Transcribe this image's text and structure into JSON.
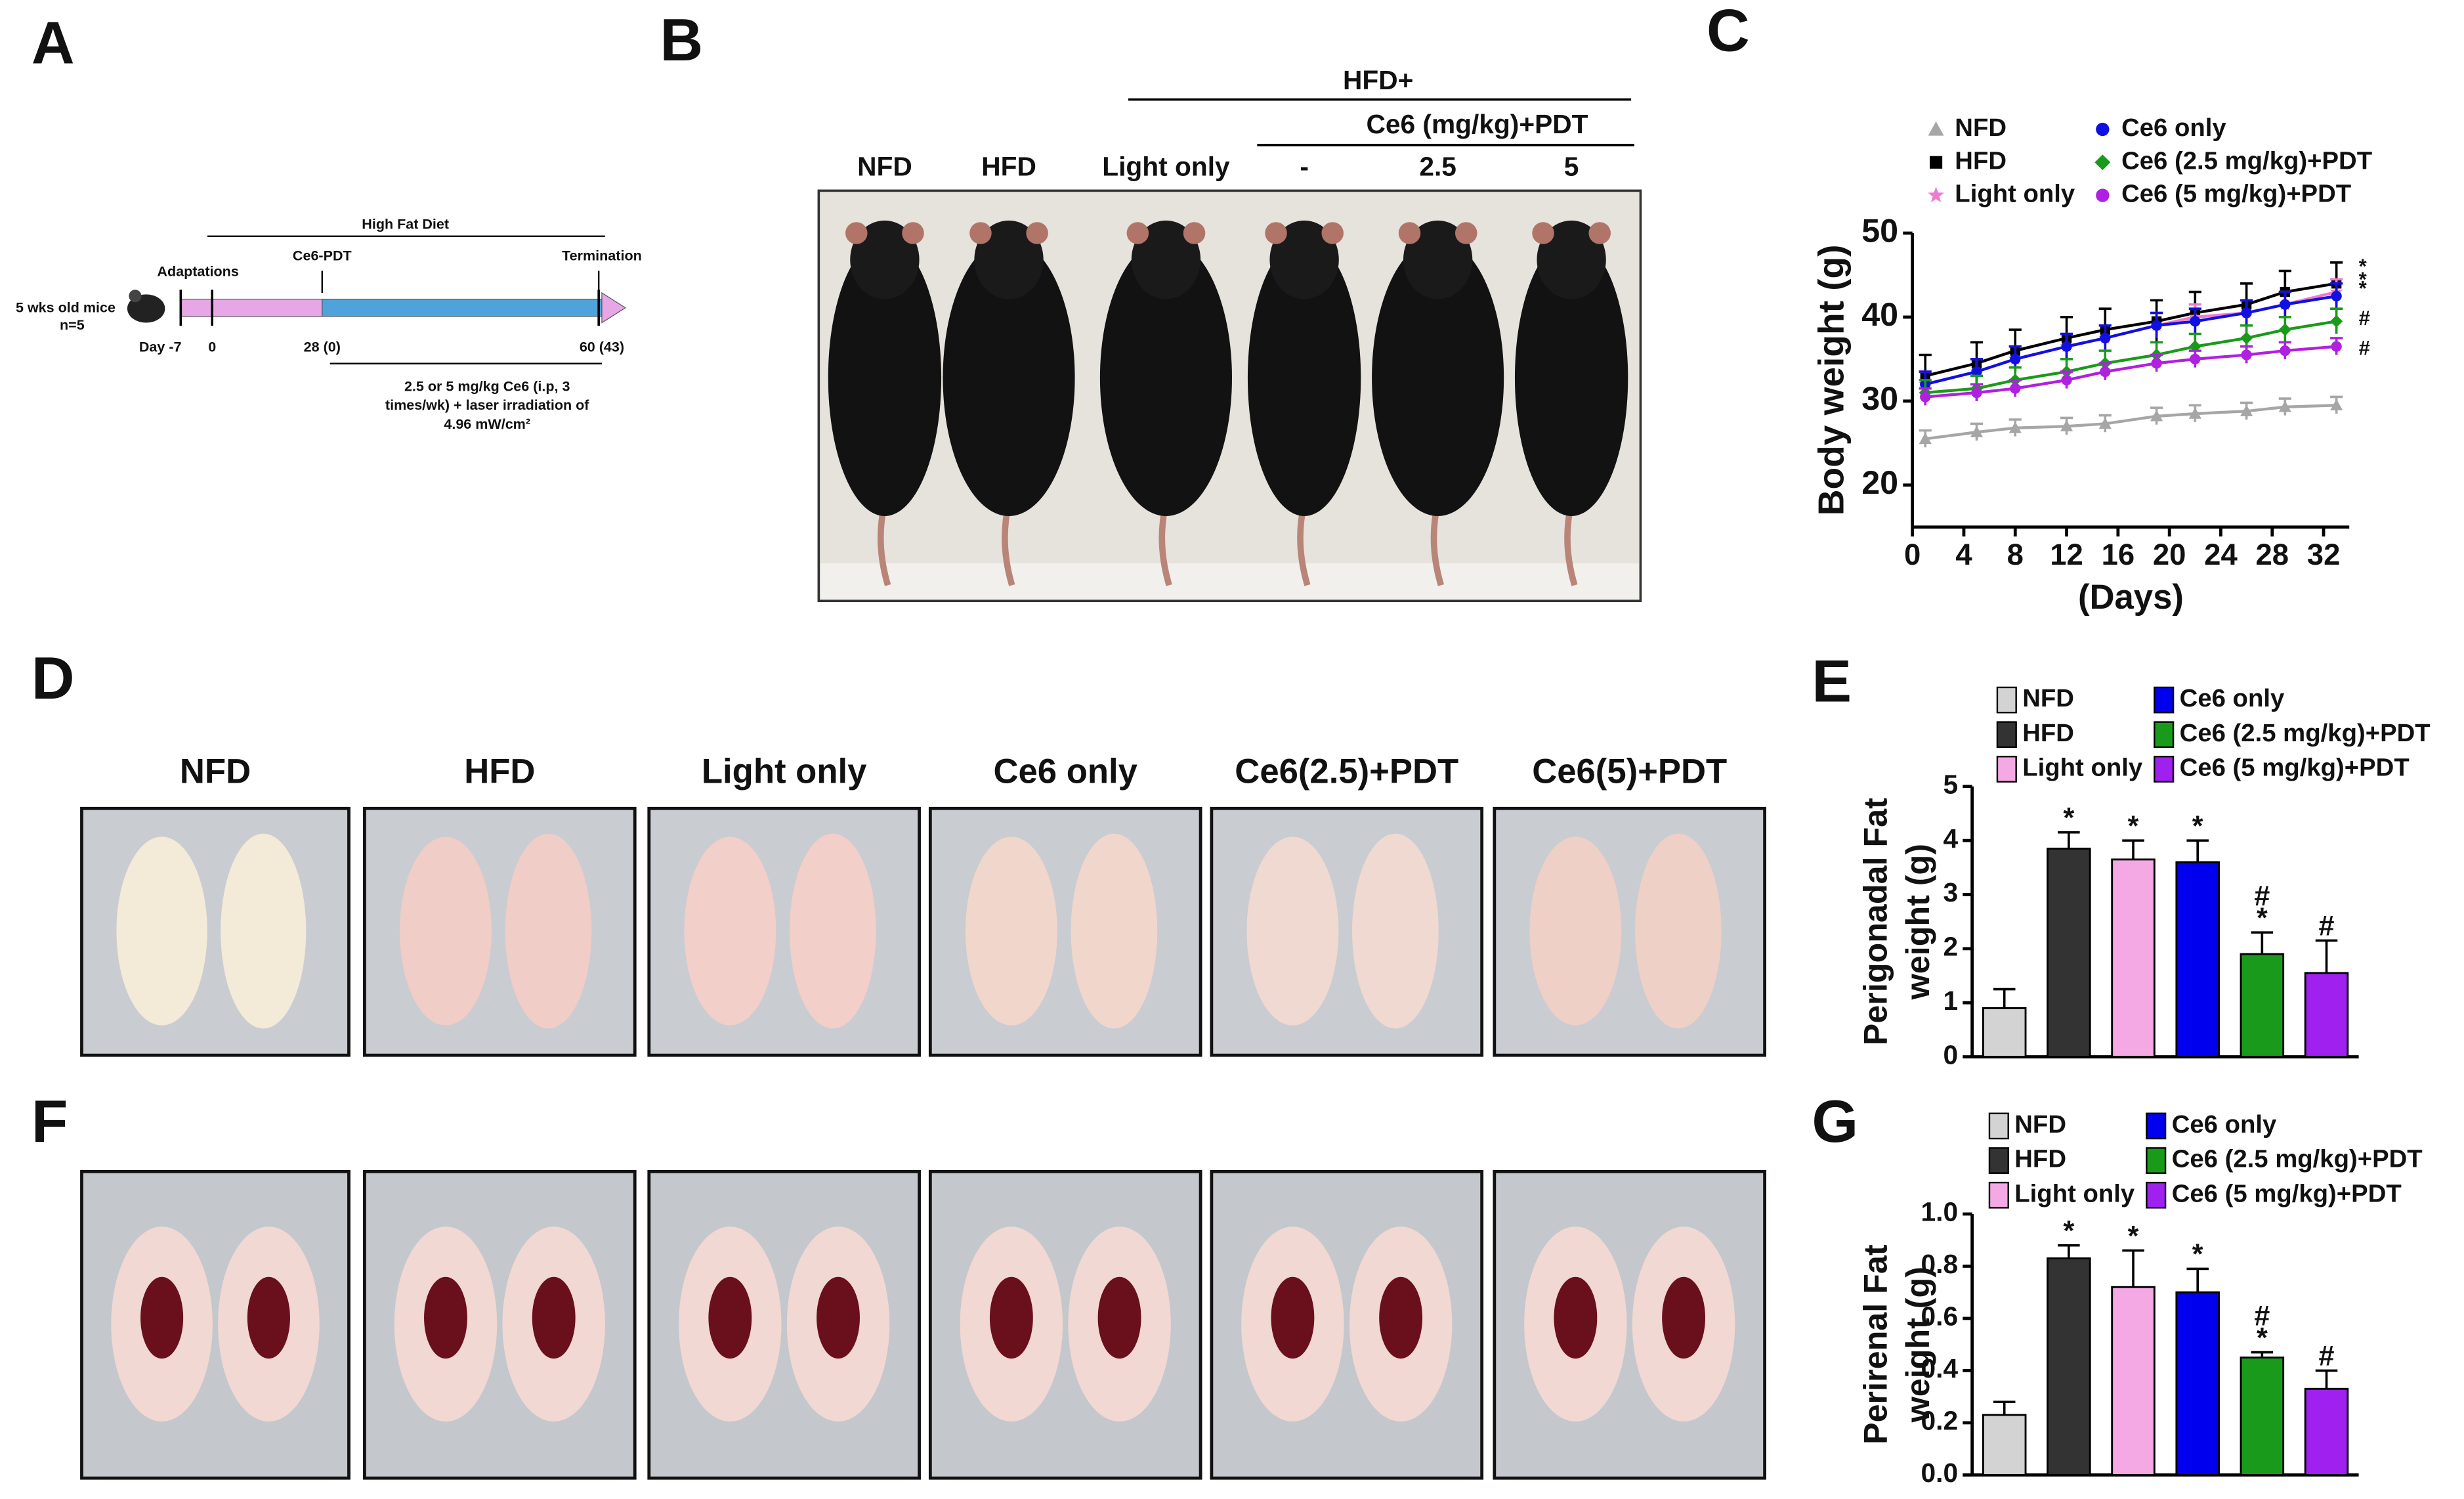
{
  "panel_labels": [
    "A",
    "B",
    "C",
    "D",
    "E",
    "F",
    "G"
  ],
  "timeline": {
    "subject": [
      "5 wks old mice",
      "n=5"
    ],
    "adaptation": "Adaptations",
    "diet": "High Fat Diet",
    "treatment": "Ce6-PDT",
    "end": "Termination",
    "days": [
      "Day -7",
      "0",
      "28 (0)",
      "60 (43)"
    ],
    "protocol": [
      "2.5 or 5 mg/kg Ce6 (i.p, 3",
      "times/wk) + laser irradiation of",
      "4.96 mW/cm²"
    ]
  },
  "photo_b": {
    "group": "HFD+",
    "subgroup": "Ce6 (mg/kg)+PDT",
    "columns": [
      "NFD",
      "HFD",
      "Light only",
      "-",
      "2.5",
      "5"
    ]
  },
  "photo_d": {
    "columns": [
      "NFD",
      "HFD",
      "Light only",
      "Ce6 only",
      "Ce6(2.5)+PDT",
      "Ce6(5)+PDT"
    ]
  },
  "chart_data": [
    {
      "type": "line",
      "ylabel": "Body weight (g)",
      "xlabel": "(Days)",
      "x": [
        1,
        5,
        8,
        12,
        15,
        19,
        22,
        26,
        29,
        33
      ],
      "xlim": [
        0,
        34
      ],
      "xticks": [
        0,
        4,
        8,
        12,
        16,
        20,
        24,
        28,
        32
      ],
      "ylim": [
        15,
        50
      ],
      "yticks": [
        20,
        30,
        40,
        50
      ],
      "series": [
        {
          "name": "NFD",
          "color": "#a6a6a6",
          "marker": "triangle",
          "values": [
            25.5,
            26.3,
            26.8,
            27,
            27.3,
            28.2,
            28.5,
            28.8,
            29.3,
            29.5
          ],
          "errors": [
            1,
            1,
            1,
            1,
            1,
            1,
            1,
            1,
            1,
            1
          ]
        },
        {
          "name": "HFD",
          "color": "#000000",
          "marker": "square",
          "values": [
            33,
            34.5,
            36,
            37.5,
            38.5,
            39.5,
            40.5,
            41.5,
            43,
            44
          ],
          "errors": [
            2.5,
            2.5,
            2.5,
            2.5,
            2.5,
            2.5,
            2.5,
            2.5,
            2.5,
            2.5
          ],
          "end_label": "*"
        },
        {
          "name": "Light only",
          "color": "#f07ad0",
          "marker": "star",
          "values": [
            32,
            33.5,
            35,
            36.5,
            37.5,
            39,
            40,
            40.5,
            41.5,
            43
          ],
          "errors": [
            1.5,
            1.5,
            1.5,
            1.5,
            1.5,
            1.5,
            1.5,
            1.5,
            1.5,
            1.5
          ],
          "end_label": "*"
        },
        {
          "name": "Ce6 only",
          "color": "#1010e0",
          "marker": "circle",
          "values": [
            32,
            33.5,
            35,
            36.5,
            37.5,
            39,
            39.5,
            40.5,
            41.5,
            42.5
          ],
          "errors": [
            1.5,
            1.5,
            1.5,
            1.5,
            1.5,
            1.5,
            1.5,
            1.5,
            1.5,
            1.5
          ],
          "end_label": "*"
        },
        {
          "name": "Ce6 (2.5 mg/kg)+PDT",
          "color": "#1a9a1a",
          "marker": "diamond",
          "values": [
            31,
            31.5,
            32.5,
            33.5,
            34.5,
            35.5,
            36.5,
            37.5,
            38.5,
            39.5
          ],
          "errors": [
            1.5,
            1.5,
            1.5,
            1.5,
            1.5,
            1.5,
            1.5,
            1.5,
            1.5,
            1.5
          ],
          "end_label": "#"
        },
        {
          "name": "Ce6 (5 mg/kg)+PDT",
          "color": "#b020e0",
          "marker": "circle",
          "values": [
            30.5,
            31,
            31.5,
            32.5,
            33.5,
            34.5,
            35,
            35.5,
            36,
            36.5
          ],
          "errors": [
            1,
            1,
            1,
            1,
            1,
            1,
            1,
            1,
            1,
            1
          ],
          "end_label": "#"
        }
      ]
    },
    {
      "type": "bar",
      "ylabel": [
        "Perigonadal Fat",
        "weight (g)"
      ],
      "categories": [
        "NFD",
        "HFD",
        "Light only",
        "Ce6 only",
        "Ce6 (2.5 mg/kg)+PDT",
        "Ce6 (5 mg/kg)+PDT"
      ],
      "colors": [
        "#d3d3d3",
        "#333333",
        "#f4a8e4",
        "#0000ee",
        "#1a9a1a",
        "#a020f0"
      ],
      "values": [
        0.9,
        3.85,
        3.65,
        3.6,
        1.9,
        1.55
      ],
      "errors": [
        0.35,
        0.3,
        0.35,
        0.4,
        0.4,
        0.6
      ],
      "annotations": [
        [],
        [
          "*"
        ],
        [
          "*"
        ],
        [
          "*"
        ],
        [
          "#",
          "*"
        ],
        [
          "#"
        ]
      ],
      "ylim": [
        0,
        5
      ],
      "yticks": [
        0,
        1,
        2,
        3,
        4,
        5
      ]
    },
    {
      "type": "bar",
      "ylabel": [
        "Perirenal Fat",
        "weight (g)"
      ],
      "categories": [
        "NFD",
        "HFD",
        "Light only",
        "Ce6 only",
        "Ce6 (2.5 mg/kg)+PDT",
        "Ce6 (5 mg/kg)+PDT"
      ],
      "colors": [
        "#d3d3d3",
        "#333333",
        "#f4a8e4",
        "#0000ee",
        "#1a9a1a",
        "#a020f0"
      ],
      "values": [
        0.23,
        0.83,
        0.72,
        0.7,
        0.45,
        0.33
      ],
      "errors": [
        0.05,
        0.05,
        0.14,
        0.09,
        0.02,
        0.07
      ],
      "annotations": [
        [],
        [
          "*"
        ],
        [
          "*"
        ],
        [
          "*"
        ],
        [
          "#",
          "*"
        ],
        [
          "#"
        ]
      ],
      "ylim": [
        0,
        1
      ],
      "yticks": [
        {
          "value": 0,
          "label": "0.0"
        },
        0.2,
        0.4,
        0.6,
        0.8,
        {
          "value": 1,
          "label": "1.0"
        }
      ]
    }
  ]
}
